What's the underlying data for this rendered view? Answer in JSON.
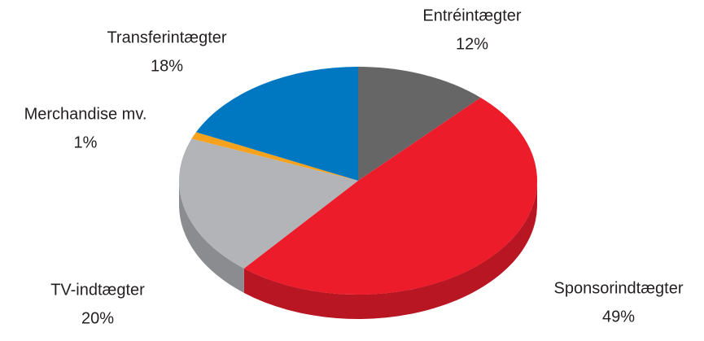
{
  "chart_data": {
    "type": "pie",
    "categories": [
      "Entréintægter",
      "Sponsorindtægter",
      "TV-indtægter",
      "Merchandise mv.",
      "Transferintægter"
    ],
    "values": [
      12,
      49,
      20,
      1,
      18
    ],
    "value_labels": [
      "12%",
      "49%",
      "20%",
      "1%",
      "18%"
    ],
    "colors": [
      "#666667",
      "#ec1c2b",
      "#b2b4b7",
      "#f6a21c",
      "#0077c1"
    ]
  }
}
